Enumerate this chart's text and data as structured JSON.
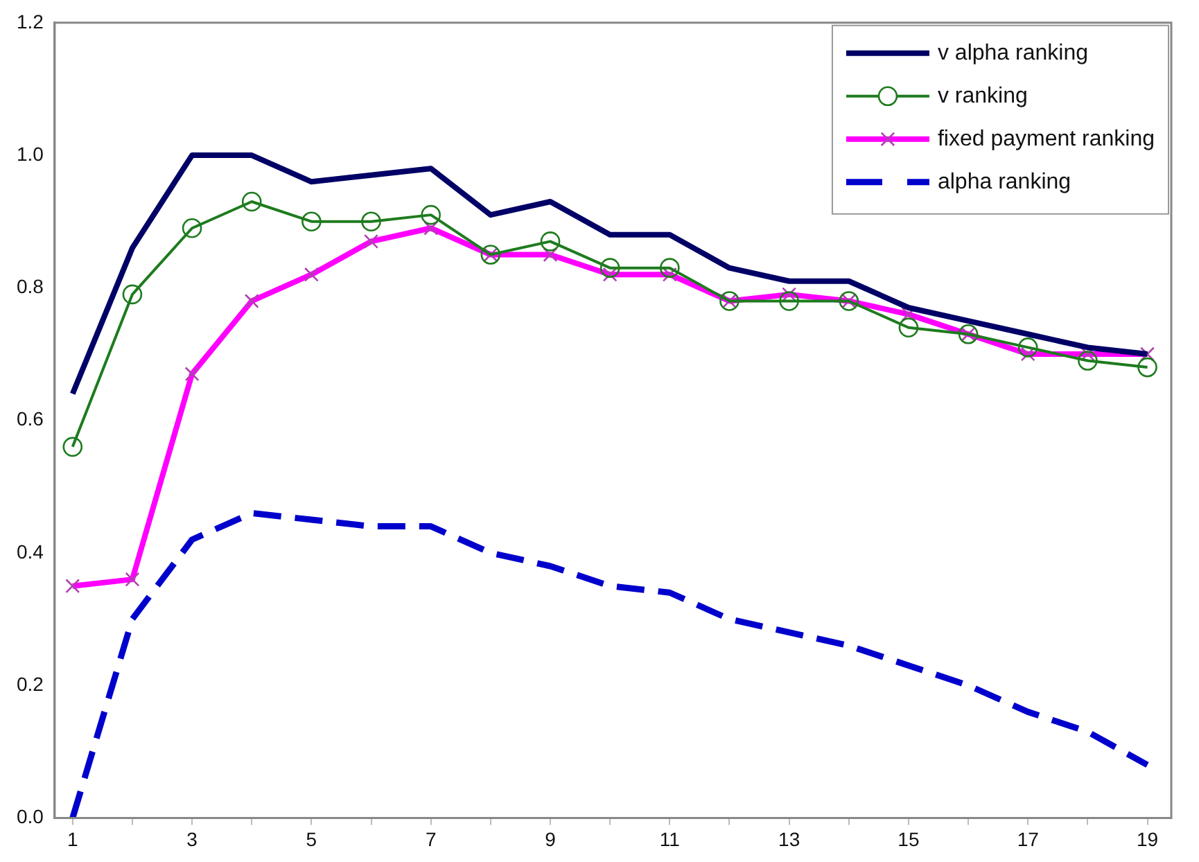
{
  "chart_data": {
    "type": "line",
    "x": [
      1,
      2,
      3,
      4,
      5,
      6,
      7,
      8,
      9,
      10,
      11,
      12,
      13,
      14,
      15,
      16,
      17,
      18,
      19
    ],
    "xlim": [
      0.7,
      19.4
    ],
    "xticks": [
      1,
      {
        "value": 2,
        "label": null
      },
      3,
      {
        "value": 4,
        "label": null
      },
      5,
      {
        "value": 6,
        "label": null
      },
      7,
      {
        "value": 8,
        "label": null
      },
      9,
      {
        "value": 10,
        "label": null
      },
      11,
      {
        "value": 12,
        "label": null
      },
      13,
      {
        "value": 14,
        "label": null
      },
      15,
      {
        "value": 16,
        "label": null
      },
      17,
      {
        "value": 18,
        "label": null
      },
      19
    ],
    "series": [
      {
        "name": "v alpha ranking",
        "color": "#000066",
        "marker": "none",
        "line_style": "solid",
        "values": [
          0.64,
          0.86,
          1.0,
          1.0,
          0.96,
          0.97,
          0.98,
          0.91,
          0.93,
          0.88,
          0.88,
          0.83,
          0.81,
          0.81,
          0.77,
          0.75,
          0.73,
          0.71,
          0.7
        ]
      },
      {
        "name": "v ranking",
        "color": "#1e7b1e",
        "marker": "circle",
        "line_style": "solid",
        "values": [
          0.56,
          0.79,
          0.89,
          0.93,
          0.9,
          0.9,
          0.91,
          0.85,
          0.87,
          0.83,
          0.83,
          0.78,
          0.78,
          0.78,
          0.74,
          0.73,
          0.71,
          0.69,
          0.68
        ]
      },
      {
        "name": "fixed payment ranking",
        "color": "#ff00ff",
        "marker": "cross",
        "line_style": "solid",
        "values": [
          0.35,
          0.36,
          0.67,
          0.78,
          0.82,
          0.87,
          0.89,
          0.85,
          0.85,
          0.82,
          0.82,
          0.78,
          0.79,
          0.78,
          0.76,
          0.73,
          0.7,
          0.7,
          0.7
        ]
      },
      {
        "name": "alpha ranking",
        "color": "#0000cc",
        "marker": "none",
        "line_style": "dashed",
        "values": [
          0.0,
          0.3,
          0.42,
          0.46,
          0.45,
          0.44,
          0.44,
          0.4,
          0.38,
          0.35,
          0.34,
          0.3,
          0.28,
          0.26,
          0.23,
          0.2,
          0.16,
          0.13,
          0.08
        ]
      }
    ],
    "ylim": [
      0,
      1.2
    ],
    "yticks": [
      {
        "value": 0,
        "label": "0.0"
      },
      0.2,
      0.4,
      0.6,
      0.8,
      {
        "value": 1,
        "label": "1.0"
      },
      1.2
    ],
    "grid": false,
    "legend": "top right"
  }
}
